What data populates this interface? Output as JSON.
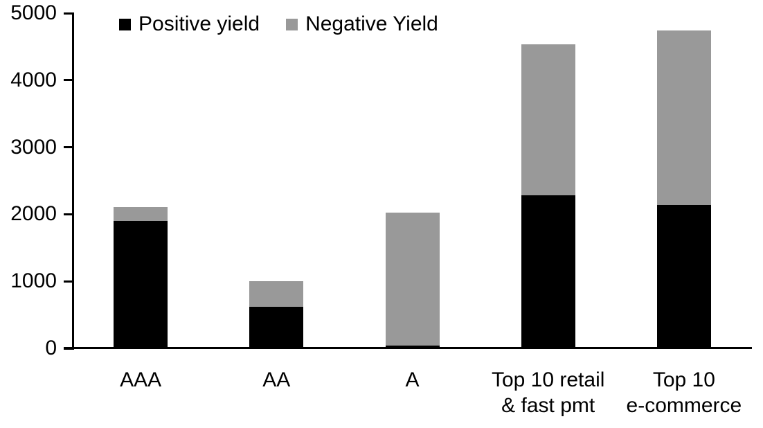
{
  "chart_data": {
    "type": "bar",
    "stacked": true,
    "title": "",
    "xlabel": "",
    "ylabel": "",
    "categories": [
      "AAA",
      "AA",
      "A",
      "Top 10 retail\n& fast pmt",
      "Top 10\ne-commerce"
    ],
    "series": [
      {
        "name": "Positive yield",
        "color": "#000000",
        "values": [
          1900,
          620,
          40,
          2280,
          2140
        ]
      },
      {
        "name": "Negative Yield",
        "color": "#999999",
        "values": [
          210,
          380,
          1990,
          2260,
          2600
        ]
      }
    ],
    "totals": [
      2110,
      1000,
      2030,
      4540,
      4740
    ],
    "ylim": [
      0,
      5000
    ],
    "yticks": [
      0,
      1000,
      2000,
      3000,
      4000,
      5000
    ],
    "legend_position": "top",
    "grid": false,
    "axis_color": "#000000",
    "background_color": "#ffffff"
  }
}
